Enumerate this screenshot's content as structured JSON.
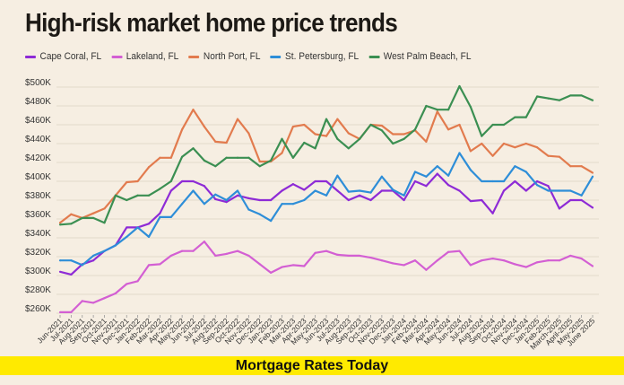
{
  "chart_data": {
    "type": "line",
    "title": "High-risk market home price trends",
    "xlabel": "",
    "ylabel": "",
    "ylim": [
      260000,
      500000
    ],
    "yticks": [
      260000,
      280000,
      300000,
      320000,
      340000,
      360000,
      380000,
      400000,
      420000,
      440000,
      460000,
      480000,
      500000
    ],
    "ytick_labels": [
      "$260K",
      "$280K",
      "$300K",
      "$320K",
      "$340K",
      "$360K",
      "$380K",
      "$400K",
      "$420K",
      "$440K",
      "$460K",
      "$480K",
      "$500K"
    ],
    "grid": true,
    "legend_placement": "top-left",
    "categories": [
      "Jun-2021",
      "Jul-2021",
      "Aug-2021",
      "Sep-2021",
      "Oct-2021",
      "Nov-2021",
      "Dec-2021",
      "Jan-2022",
      "Feb-2022",
      "Mar-2022",
      "Apr-2022",
      "May-2022",
      "Jun-2022",
      "Jul-2022",
      "Aug-2022",
      "Sep-2022",
      "Oct-2022",
      "Nov-2022",
      "Dec-2022",
      "Jan-2023",
      "Feb-2023",
      "Mar-2023",
      "Apr-2023",
      "May-2023",
      "Jun-2023",
      "Jul-2023",
      "Aug-2023",
      "Sep-2023",
      "Oct-2023",
      "Nov-2023",
      "Dec-2023",
      "Jan-2024",
      "Feb-2024",
      "Mar-2024",
      "Apr-2024",
      "May-2024",
      "Jun-2024",
      "Jul-2024",
      "Aug-2024",
      "Sep-2024",
      "Oct-2024",
      "Nov-2024",
      "Dec-2024",
      "Jan-2025",
      "Feb-2025",
      "March-2025",
      "April-2025",
      "May-2025",
      "June 2025"
    ],
    "series": [
      {
        "name": "Cape Coral, FL",
        "color": "#8e2bd6",
        "values": [
          304000,
          301000,
          312000,
          316000,
          326000,
          332000,
          351000,
          351000,
          355000,
          366000,
          390000,
          400000,
          400000,
          395000,
          381000,
          378000,
          385000,
          382000,
          380000,
          380000,
          390000,
          397000,
          391000,
          400000,
          400000,
          390000,
          380000,
          385000,
          380000,
          390000,
          390000,
          380000,
          400000,
          395000,
          408000,
          396000,
          390000,
          379000,
          380000,
          366000,
          390000,
          400000,
          390000,
          400000,
          395000,
          371000,
          380000,
          380000,
          372000
        ]
      },
      {
        "name": "Lakeland, FL",
        "color": "#d35fd3",
        "values": [
          261000,
          261000,
          273000,
          271000,
          276000,
          281000,
          291000,
          294000,
          311000,
          312000,
          321000,
          326000,
          326000,
          336000,
          321000,
          323000,
          326000,
          321000,
          312000,
          303000,
          309000,
          311000,
          310000,
          324000,
          326000,
          322000,
          321000,
          321000,
          319000,
          316000,
          313000,
          311000,
          316000,
          306000,
          316000,
          325000,
          326000,
          311000,
          316000,
          318000,
          316000,
          312000,
          309000,
          314000,
          316000,
          316000,
          321000,
          318000,
          310000
        ]
      },
      {
        "name": "North Port, FL",
        "color": "#e27b4e",
        "values": [
          356000,
          365000,
          361000,
          366000,
          371000,
          385000,
          399000,
          400000,
          415000,
          425000,
          425000,
          455000,
          476000,
          458000,
          442000,
          441000,
          466000,
          451000,
          421000,
          421000,
          430000,
          458000,
          460000,
          450000,
          448000,
          466000,
          451000,
          445000,
          460000,
          459000,
          450000,
          450000,
          454000,
          442000,
          474000,
          455000,
          460000,
          432000,
          440000,
          427000,
          440000,
          436000,
          440000,
          436000,
          427000,
          426000,
          416000,
          416000,
          409000
        ]
      },
      {
        "name": "St. Petersburg, FL",
        "color": "#2e8ed8",
        "values": [
          316000,
          316000,
          311000,
          321000,
          326000,
          332000,
          341000,
          351000,
          341000,
          362000,
          362000,
          376000,
          390000,
          376000,
          386000,
          380000,
          390000,
          370000,
          365000,
          358000,
          376000,
          376000,
          380000,
          390000,
          385000,
          406000,
          389000,
          390000,
          388000,
          405000,
          391000,
          385000,
          410000,
          405000,
          416000,
          406000,
          430000,
          412000,
          400000,
          400000,
          400000,
          416000,
          410000,
          396000,
          390000,
          390000,
          390000,
          385000,
          405000
        ]
      },
      {
        "name": "West Palm Beach, FL",
        "color": "#3b8f52",
        "values": [
          354000,
          355000,
          361000,
          361000,
          356000,
          385000,
          380000,
          385000,
          385000,
          392000,
          400000,
          426000,
          435000,
          422000,
          416000,
          425000,
          425000,
          425000,
          416000,
          422000,
          445000,
          425000,
          441000,
          435000,
          466000,
          445000,
          435000,
          445000,
          460000,
          454000,
          440000,
          445000,
          455000,
          480000,
          476000,
          476000,
          501000,
          479000,
          448000,
          460000,
          460000,
          468000,
          468000,
          490000,
          488000,
          486000,
          491000,
          491000,
          486000
        ]
      }
    ]
  },
  "banner": {
    "text": "Mortgage Rates Today",
    "color": "#ffea00"
  }
}
